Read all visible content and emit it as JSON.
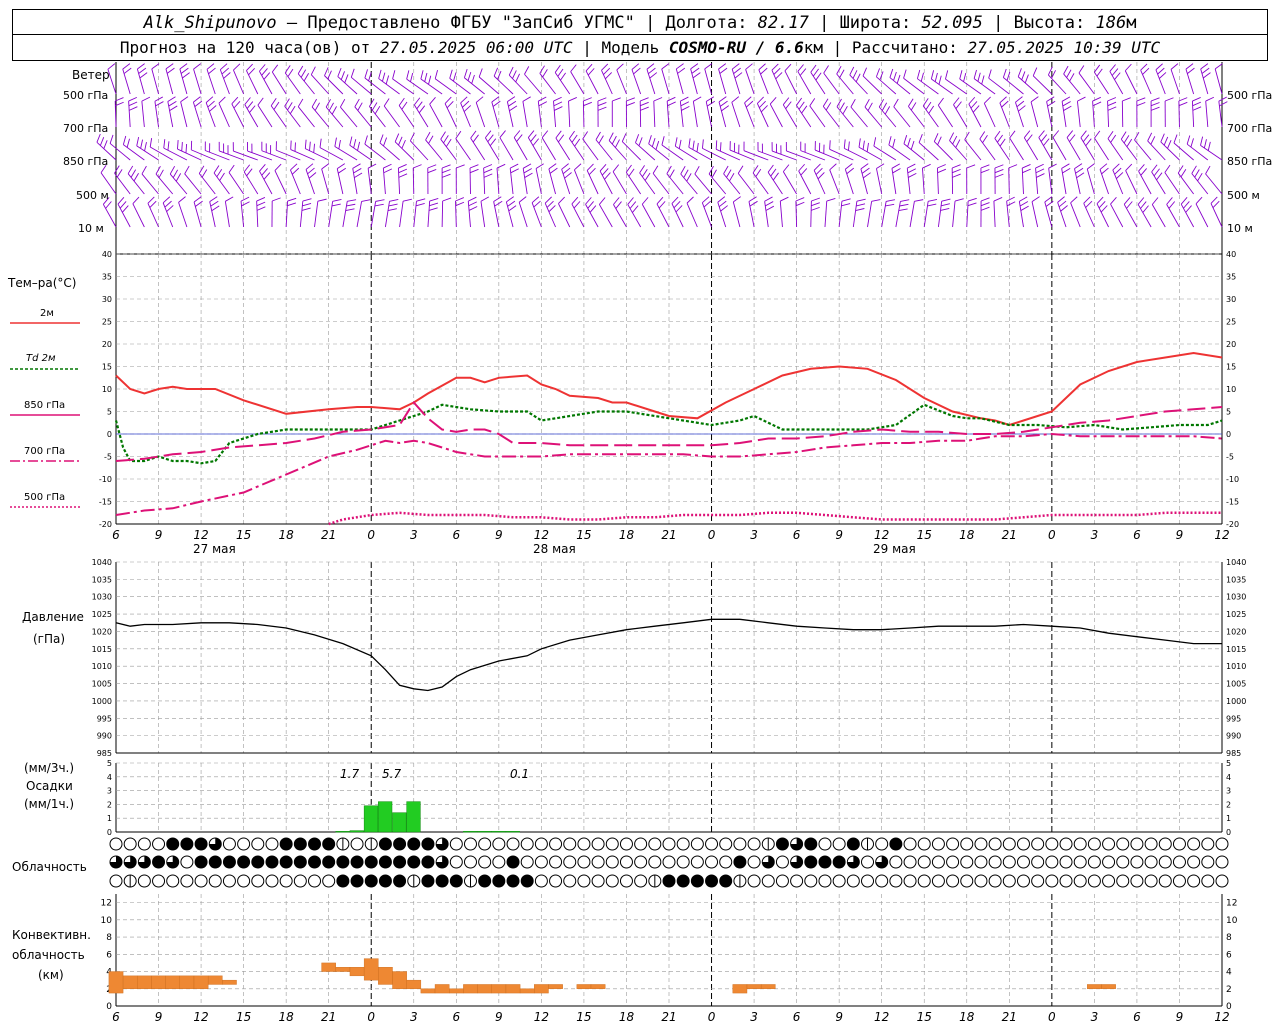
{
  "header": {
    "station": "Alk_Shipunovo",
    "provider": " – Предоставлено ФГБУ \"ЗапСиб УГМС\" | Долгота: ",
    "lon": "82.17",
    "lat_label": " | Широта: ",
    "lat": "52.095",
    "alt_label": " | Высота: ",
    "alt": "186",
    "alt_unit": "м",
    "line2_a": "Прогноз на 120 часа(ов) от ",
    "issued": "27.05.2025 06:00 UTC",
    "line2_b": "  | Модель ",
    "model": "COSMO-RU / 6.6",
    "model_unit": "км",
    "line2_c": " | Рассчитано: ",
    "computed": "27.05.2025 10:39 UTC"
  },
  "labels": {
    "wind": "Ветер",
    "wind_levels": [
      "500 гПа",
      "700 гПа",
      "850 гПа",
      "500 м",
      "10   м"
    ],
    "temp": "Тем–ра(°С)",
    "temp_legend": [
      "2м",
      "Td  2м",
      "850 гПа",
      "700 гПа",
      "500 гПа"
    ],
    "pressure": [
      "Давление",
      "(гПа)"
    ],
    "precip": [
      "(мм/3ч.)",
      "Осадки",
      "(мм/1ч.)"
    ],
    "cloud": "Облачность",
    "conv": [
      "Конвективн.",
      "облачность",
      "(км)"
    ],
    "days": [
      "27 мая",
      "28 мая",
      "29 мая"
    ],
    "precip_totals": [
      "1.7",
      "5.7",
      "0.1"
    ]
  },
  "colors": {
    "t2m": "#ee3333",
    "td2m": "#007700",
    "t850": "#dd1177",
    "t700": "#dd1177",
    "t500": "#dd1177",
    "wind": "#8800cc",
    "pressure": "#000000",
    "precip": "#22cc22",
    "conv": "#ee8833"
  },
  "chart_data": [
    {
      "type": "line",
      "title": "Тем–ра(°С)",
      "x_hours": [
        6,
        9,
        12,
        15,
        18,
        21,
        24,
        27,
        30,
        33,
        36,
        39,
        42,
        45,
        48,
        51,
        54,
        57,
        60,
        63,
        66,
        69,
        72,
        75,
        78,
        81,
        84
      ],
      "x_tick_labels": [
        "6",
        "9",
        "12",
        "15",
        "18",
        "21",
        "0",
        "3",
        "6",
        "9",
        "12",
        "15",
        "18",
        "21",
        "0",
        "3",
        "6",
        "9",
        "12",
        "15",
        "18",
        "21",
        "0",
        "3",
        "6",
        "9",
        "12"
      ],
      "ylim": [
        -20,
        40
      ],
      "series": [
        {
          "name": "2м",
          "x": [
            6,
            7,
            8,
            9,
            10,
            11,
            12,
            13,
            15,
            18,
            21,
            23,
            24,
            26,
            27,
            28,
            30,
            31,
            32,
            33,
            35,
            36,
            37,
            38,
            40,
            41,
            42,
            44,
            45,
            47,
            49,
            51,
            53,
            55,
            57,
            59,
            61,
            63,
            65,
            67,
            68,
            69,
            70,
            72,
            74,
            76,
            78,
            80,
            82,
            84
          ],
          "values": [
            13,
            10,
            9,
            10,
            10.5,
            10,
            10,
            10,
            7.5,
            4.5,
            5.5,
            6,
            6,
            5.5,
            7,
            9,
            12.5,
            12.5,
            11.5,
            12.5,
            13,
            11,
            10,
            8.5,
            8,
            7,
            7,
            5,
            4,
            3.5,
            7,
            10,
            13,
            14.5,
            15,
            14.5,
            12,
            8,
            5,
            3.5,
            3,
            2,
            3,
            5,
            11,
            14,
            16,
            17,
            18,
            17
          ]
        },
        {
          "name": "Td  2м",
          "x": [
            6,
            6.5,
            7,
            8,
            9,
            10,
            11,
            12,
            13,
            14,
            16,
            18,
            21,
            23,
            24,
            26,
            27,
            28,
            29,
            31,
            33,
            35,
            36,
            37,
            38,
            40,
            42,
            44,
            46,
            48,
            50,
            51,
            53,
            55,
            57,
            59,
            61,
            63,
            65,
            66,
            67,
            69,
            71,
            73,
            75,
            77,
            79,
            81,
            83,
            84
          ],
          "values": [
            3,
            -3,
            -6,
            -6,
            -5,
            -6,
            -6,
            -6.5,
            -6,
            -2,
            0,
            1,
            1,
            1,
            1,
            3,
            4,
            5,
            6.5,
            5.5,
            5,
            5,
            3,
            3.5,
            4,
            5,
            5,
            4,
            3,
            2,
            3,
            4,
            1,
            1,
            1,
            1,
            2,
            6.5,
            4,
            3.5,
            3.5,
            2,
            2,
            1.5,
            2,
            1,
            1.5,
            2,
            2,
            3
          ]
        },
        {
          "name": "850 гПа",
          "x": [
            6,
            8,
            10,
            12,
            14,
            16,
            18,
            20,
            22,
            24,
            26,
            27,
            28,
            29,
            30,
            31,
            32,
            33,
            34,
            36,
            38,
            40,
            42,
            44,
            46,
            48,
            50,
            52,
            54,
            56,
            58,
            60,
            62,
            64,
            66,
            68,
            70,
            72,
            74,
            76,
            78,
            80,
            82,
            84
          ],
          "values": [
            -6,
            -5.5,
            -4.5,
            -4,
            -3,
            -2.5,
            -2,
            -1,
            0.5,
            1,
            2,
            7,
            3.5,
            1,
            0.5,
            1,
            1,
            0,
            -2,
            -2,
            -2.5,
            -2.5,
            -2.5,
            -2.5,
            -2.5,
            -2.5,
            -2,
            -1,
            -1,
            -0.5,
            0.5,
            1,
            0.5,
            0.5,
            0,
            0,
            0.5,
            1.5,
            2.5,
            3,
            4,
            5,
            5.5,
            6
          ]
        },
        {
          "name": "700 гПа",
          "x": [
            6,
            8,
            10,
            12,
            15,
            18,
            21,
            23,
            24,
            25,
            26,
            27,
            28,
            29,
            30,
            32,
            34,
            36,
            38,
            40,
            42,
            44,
            46,
            48,
            50,
            52,
            54,
            56,
            58,
            60,
            62,
            64,
            66,
            67,
            68,
            70,
            72,
            74,
            76,
            78,
            80,
            82,
            84
          ],
          "values": [
            -18,
            -17,
            -16.5,
            -15,
            -13,
            -9,
            -5,
            -3.5,
            -2.5,
            -1.5,
            -2,
            -1.5,
            -2,
            -3,
            -4,
            -5,
            -5,
            -5,
            -4.5,
            -4.5,
            -4.5,
            -4.5,
            -4.5,
            -5,
            -5,
            -4.5,
            -4,
            -3,
            -2.5,
            -2,
            -2,
            -1.5,
            -1.5,
            -1,
            -0.5,
            -0.5,
            0,
            -0.5,
            -0.5,
            -0.5,
            -0.5,
            -0.5,
            -1
          ]
        },
        {
          "name": "500 гПа",
          "x": [
            21,
            22,
            24,
            26,
            28,
            30,
            32,
            34,
            36,
            38,
            40,
            42,
            44,
            46,
            48,
            50,
            52,
            54,
            56,
            58,
            60,
            62,
            64,
            66,
            68,
            70,
            72,
            74,
            76,
            78,
            80,
            82,
            84
          ],
          "values": [
            -20,
            -19,
            -18,
            -17.5,
            -18,
            -18,
            -18,
            -18.5,
            -18.5,
            -19,
            -19,
            -18.5,
            -18.5,
            -18,
            -18,
            -18,
            -17.5,
            -17.5,
            -18,
            -18.5,
            -19,
            -19,
            -19,
            -19,
            -19,
            -18.5,
            -18,
            -18,
            -18,
            -18,
            -17.5,
            -17.5,
            -17.5
          ]
        }
      ]
    },
    {
      "type": "line",
      "title": "Давление (гПа)",
      "ylim": [
        985,
        1040
      ],
      "series": [
        {
          "name": "Давление",
          "x": [
            6,
            7,
            8,
            10,
            12,
            14,
            16,
            18,
            20,
            22,
            24,
            25,
            26,
            27,
            28,
            29,
            30,
            31,
            33,
            35,
            36,
            38,
            40,
            42,
            44,
            46,
            48,
            50,
            52,
            54,
            56,
            58,
            60,
            62,
            64,
            66,
            68,
            70,
            72,
            74,
            76,
            78,
            80,
            82,
            84
          ],
          "values": [
            1022.5,
            1021.5,
            1022,
            1022,
            1022.5,
            1022.5,
            1022,
            1021,
            1019,
            1016.5,
            1013,
            1009,
            1004.5,
            1003.5,
            1003,
            1004,
            1007,
            1009,
            1011.5,
            1013,
            1015,
            1017.5,
            1019,
            1020.5,
            1021.5,
            1022.5,
            1023.5,
            1023.5,
            1022.5,
            1021.5,
            1021,
            1020.5,
            1020.5,
            1021,
            1021.5,
            1021.5,
            1021.5,
            1022,
            1021.5,
            1021,
            1019.5,
            1018.5,
            1017.5,
            1016.5,
            1016.5
          ]
        }
      ]
    },
    {
      "type": "bar",
      "title": "Осадки (мм/1ч.)",
      "ylim": [
        0,
        5
      ],
      "x": [
        22,
        23,
        24,
        25,
        26,
        27,
        31,
        32,
        33,
        34
      ],
      "values": [
        0.05,
        0.1,
        1.9,
        2.2,
        1.4,
        2.2,
        0.05,
        0.05,
        0.05,
        0.05
      ]
    },
    {
      "type": "bar",
      "title": "Конвективн. облачность (км)",
      "ylim": [
        0,
        13
      ],
      "note": "bars: [base_km, top_km]",
      "x": [
        6,
        7,
        8,
        9,
        10,
        11,
        12,
        13,
        14,
        21,
        22,
        23,
        24,
        25,
        26,
        27,
        28,
        29,
        30,
        31,
        32,
        33,
        34,
        35,
        36,
        37,
        39,
        40,
        50,
        51,
        52,
        75,
        76
      ],
      "values": [
        [
          1.5,
          4
        ],
        [
          2,
          3.5
        ],
        [
          2,
          3.5
        ],
        [
          2,
          3.5
        ],
        [
          2,
          3.5
        ],
        [
          2,
          3.5
        ],
        [
          2,
          3.5
        ],
        [
          2.5,
          3.5
        ],
        [
          2.5,
          3
        ],
        [
          4,
          5
        ],
        [
          4,
          4.5
        ],
        [
          3.5,
          4.5
        ],
        [
          3,
          5.5
        ],
        [
          2.5,
          4.5
        ],
        [
          2,
          4
        ],
        [
          2,
          3
        ],
        [
          1.5,
          2
        ],
        [
          1.5,
          2.5
        ],
        [
          1.5,
          2
        ],
        [
          1.5,
          2.5
        ],
        [
          1.5,
          2.5
        ],
        [
          1.5,
          2.5
        ],
        [
          1.5,
          2.5
        ],
        [
          1.5,
          2
        ],
        [
          1.5,
          2.5
        ],
        [
          2,
          2.5
        ],
        [
          2,
          2.5
        ],
        [
          2,
          2.5
        ],
        [
          1.5,
          2.5
        ],
        [
          2,
          2.5
        ],
        [
          2,
          2.5
        ],
        [
          2,
          2.5
        ],
        [
          2,
          2.5
        ]
      ]
    }
  ]
}
